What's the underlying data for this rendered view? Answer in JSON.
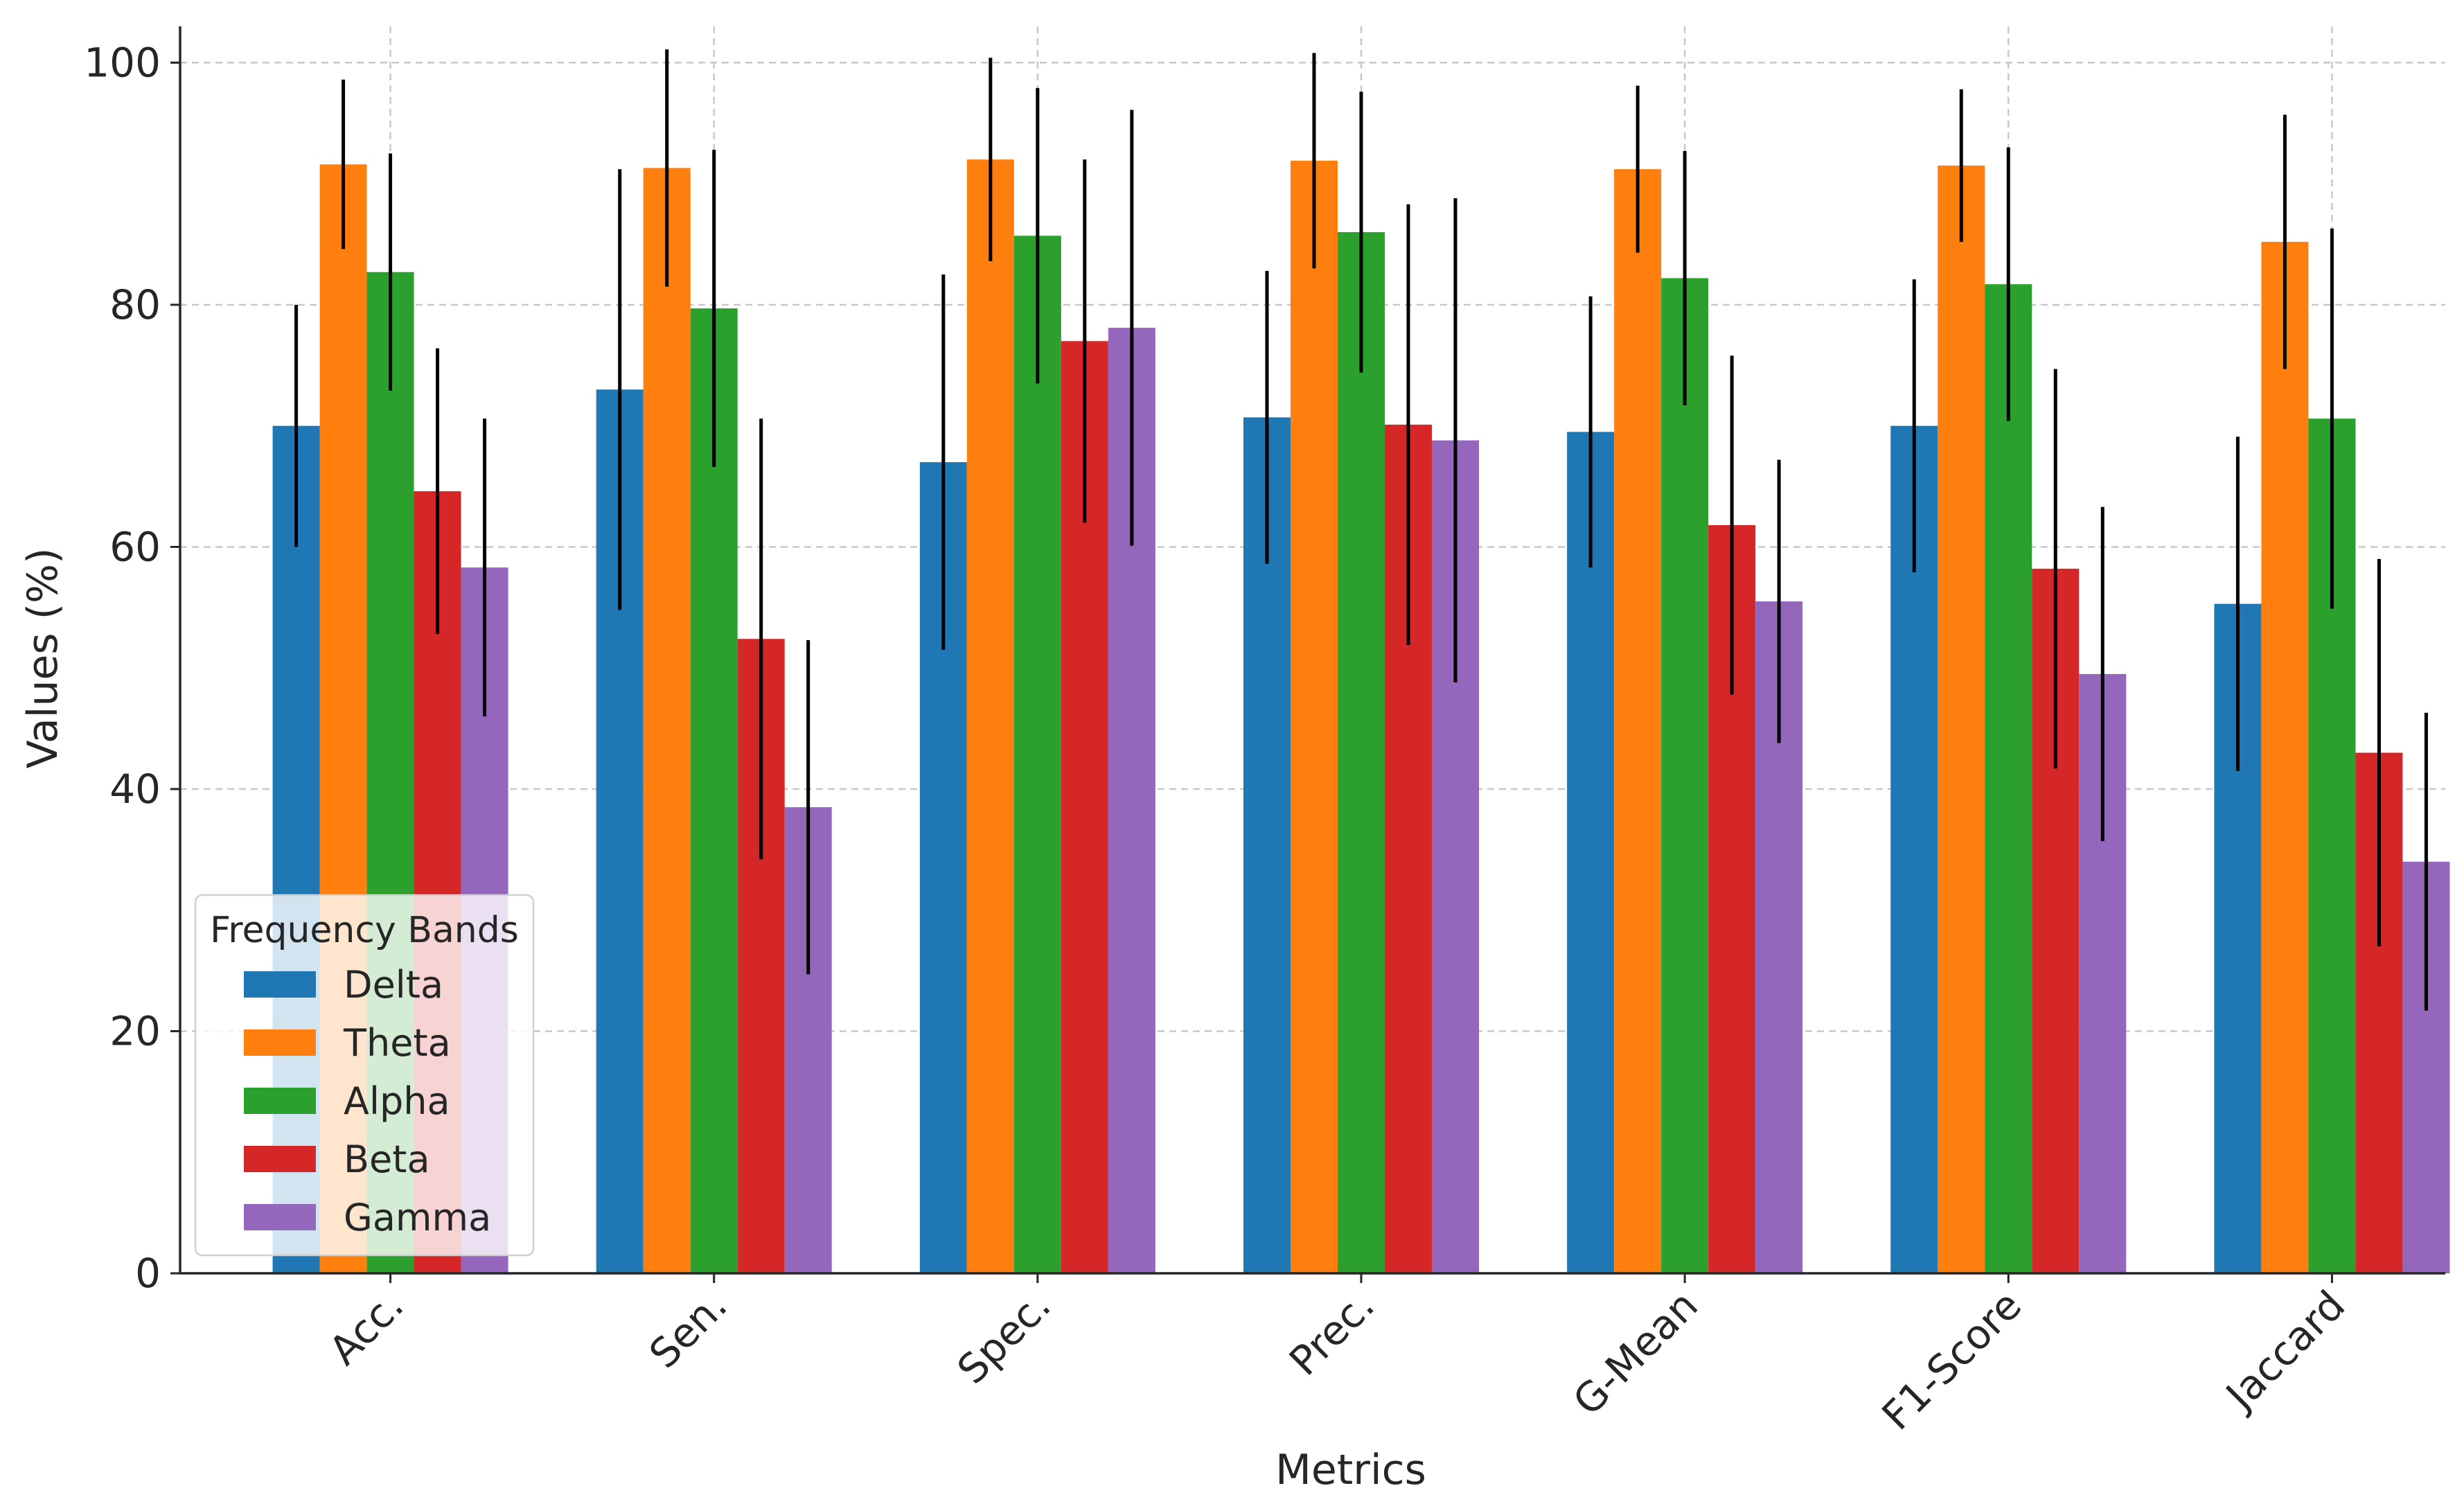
{
  "chart_data": {
    "type": "bar",
    "title": "",
    "xlabel": "Metrics",
    "ylabel": "Values (%)",
    "ylim": [
      0,
      103
    ],
    "yticks": [
      0,
      20,
      40,
      60,
      80,
      100
    ],
    "grid": true,
    "legend": {
      "title": "Frequency Bands",
      "location": "lower-left"
    },
    "categories": [
      "Acc.",
      "Sen.",
      "Spec.",
      "Prec.",
      "G-Mean",
      "F1-Score",
      "Jaccard"
    ],
    "series": [
      {
        "name": "Delta",
        "color": "#1f77b4",
        "values": [
          70,
          73,
          67,
          70.7,
          69.5,
          70,
          55.3
        ],
        "errors": [
          10,
          18.2,
          15.5,
          12.1,
          11.2,
          12.1,
          13.8
        ]
      },
      {
        "name": "Theta",
        "color": "#ff7f0e",
        "values": [
          91.6,
          91.3,
          92,
          91.9,
          91.2,
          91.5,
          85.2
        ],
        "errors": [
          7,
          9.8,
          8.4,
          8.9,
          6.9,
          6.3,
          10.5
        ]
      },
      {
        "name": "Alpha",
        "color": "#2ca02c",
        "values": [
          82.7,
          79.7,
          85.7,
          86,
          82.2,
          81.7,
          70.6
        ],
        "errors": [
          9.8,
          13.1,
          12.2,
          11.6,
          10.5,
          11.3,
          15.7
        ]
      },
      {
        "name": "Beta",
        "color": "#d62728",
        "values": [
          64.6,
          52.4,
          77,
          70.1,
          61.8,
          58.2,
          43
        ],
        "errors": [
          11.8,
          18.2,
          15,
          18.2,
          14,
          16.5,
          16
        ]
      },
      {
        "name": "Gamma",
        "color": "#9467bd",
        "values": [
          58.3,
          38.5,
          78.1,
          68.8,
          55.5,
          49.5,
          34
        ],
        "errors": [
          12.3,
          13.8,
          18,
          20,
          11.7,
          13.8,
          12.3
        ]
      }
    ]
  }
}
